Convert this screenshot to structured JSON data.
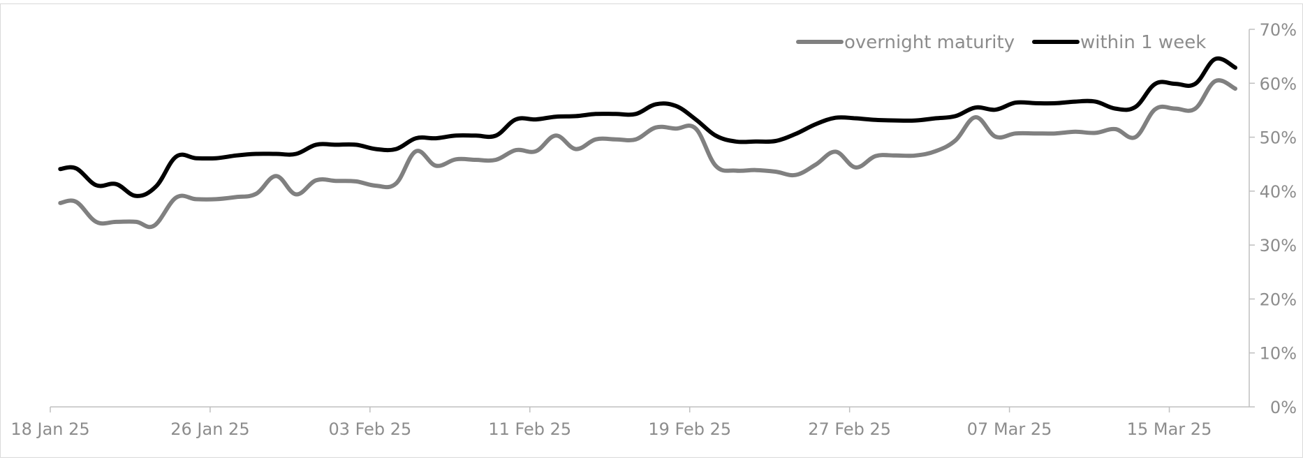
{
  "chart_data": {
    "type": "line",
    "xlabel": "",
    "ylabel": "",
    "grid": false,
    "legend_position": "top-right",
    "y_axis_position": "right",
    "ylim": [
      0,
      70
    ],
    "y_ticks": [
      0,
      10,
      20,
      30,
      40,
      50,
      60,
      70
    ],
    "y_tick_labels": [
      "0%",
      "10%",
      "20%",
      "30%",
      "40%",
      "50%",
      "60%",
      "70%"
    ],
    "x_tick_labels": [
      "18 Jan 25",
      "26 Jan 25",
      "03 Feb 25",
      "11 Feb 25",
      "19 Feb 25",
      "27 Feb 25",
      "07 Mar 25",
      "15 Mar 25"
    ],
    "x_tick_positions": [
      0,
      8,
      16,
      24,
      32,
      40,
      48,
      56
    ],
    "xlim": [
      0,
      60
    ],
    "series": [
      {
        "name": "overnight maturity",
        "color": "#808080",
        "points": [
          [
            0.5,
            37.8
          ],
          [
            1.3,
            38.0
          ],
          [
            2.3,
            34.3
          ],
          [
            3.3,
            34.3
          ],
          [
            4.3,
            34.3
          ],
          [
            5.2,
            33.6
          ],
          [
            6.3,
            38.8
          ],
          [
            7.3,
            38.5
          ],
          [
            8.3,
            38.5
          ],
          [
            9.3,
            38.9
          ],
          [
            10.3,
            39.5
          ],
          [
            11.3,
            42.8
          ],
          [
            12.3,
            39.4
          ],
          [
            13.3,
            42.0
          ],
          [
            14.3,
            41.9
          ],
          [
            15.3,
            41.8
          ],
          [
            16.3,
            41.0
          ],
          [
            17.3,
            41.4
          ],
          [
            18.3,
            47.4
          ],
          [
            19.3,
            44.7
          ],
          [
            20.3,
            45.9
          ],
          [
            21.3,
            45.8
          ],
          [
            22.3,
            45.8
          ],
          [
            23.3,
            47.6
          ],
          [
            24.3,
            47.4
          ],
          [
            25.3,
            50.3
          ],
          [
            26.3,
            47.8
          ],
          [
            27.3,
            49.6
          ],
          [
            28.3,
            49.6
          ],
          [
            29.3,
            49.6
          ],
          [
            30.3,
            51.8
          ],
          [
            31.3,
            51.6
          ],
          [
            32.3,
            51.6
          ],
          [
            33.3,
            44.7
          ],
          [
            34.3,
            43.8
          ],
          [
            35.3,
            43.9
          ],
          [
            36.3,
            43.6
          ],
          [
            37.3,
            43.0
          ],
          [
            38.3,
            44.9
          ],
          [
            39.3,
            47.3
          ],
          [
            40.3,
            44.4
          ],
          [
            41.3,
            46.5
          ],
          [
            42.3,
            46.6
          ],
          [
            43.3,
            46.6
          ],
          [
            44.3,
            47.4
          ],
          [
            45.3,
            49.4
          ],
          [
            46.3,
            53.7
          ],
          [
            47.3,
            50.1
          ],
          [
            48.3,
            50.7
          ],
          [
            49.3,
            50.7
          ],
          [
            50.3,
            50.7
          ],
          [
            51.3,
            51.0
          ],
          [
            52.3,
            50.8
          ],
          [
            53.3,
            51.5
          ],
          [
            54.3,
            50.0
          ],
          [
            55.3,
            55.2
          ],
          [
            56.3,
            55.3
          ],
          [
            57.3,
            55.3
          ],
          [
            58.3,
            60.4
          ],
          [
            59.3,
            59.0
          ]
        ]
      },
      {
        "name": "within 1 week",
        "color": "#000000",
        "points": [
          [
            0.5,
            44.1
          ],
          [
            1.3,
            44.2
          ],
          [
            2.3,
            41.1
          ],
          [
            3.3,
            41.3
          ],
          [
            4.3,
            39.1
          ],
          [
            5.3,
            40.9
          ],
          [
            6.3,
            46.4
          ],
          [
            7.3,
            46.1
          ],
          [
            8.3,
            46.1
          ],
          [
            9.3,
            46.6
          ],
          [
            10.3,
            46.9
          ],
          [
            11.3,
            46.9
          ],
          [
            12.3,
            46.9
          ],
          [
            13.3,
            48.6
          ],
          [
            14.3,
            48.6
          ],
          [
            15.3,
            48.6
          ],
          [
            16.3,
            47.8
          ],
          [
            17.3,
            47.8
          ],
          [
            18.3,
            49.8
          ],
          [
            19.3,
            49.8
          ],
          [
            20.3,
            50.3
          ],
          [
            21.3,
            50.3
          ],
          [
            22.3,
            50.3
          ],
          [
            23.3,
            53.3
          ],
          [
            24.3,
            53.3
          ],
          [
            25.3,
            53.8
          ],
          [
            26.3,
            53.9
          ],
          [
            27.3,
            54.3
          ],
          [
            28.3,
            54.3
          ],
          [
            29.3,
            54.3
          ],
          [
            30.3,
            56.1
          ],
          [
            31.3,
            55.8
          ],
          [
            32.3,
            53.3
          ],
          [
            33.3,
            50.3
          ],
          [
            34.3,
            49.2
          ],
          [
            35.3,
            49.2
          ],
          [
            36.3,
            49.3
          ],
          [
            37.3,
            50.6
          ],
          [
            38.3,
            52.4
          ],
          [
            39.3,
            53.6
          ],
          [
            40.3,
            53.5
          ],
          [
            41.3,
            53.2
          ],
          [
            42.3,
            53.1
          ],
          [
            43.3,
            53.1
          ],
          [
            44.3,
            53.5
          ],
          [
            45.3,
            53.9
          ],
          [
            46.3,
            55.5
          ],
          [
            47.3,
            55.1
          ],
          [
            48.3,
            56.4
          ],
          [
            49.3,
            56.3
          ],
          [
            50.3,
            56.3
          ],
          [
            51.3,
            56.6
          ],
          [
            52.3,
            56.6
          ],
          [
            53.3,
            55.3
          ],
          [
            54.3,
            55.6
          ],
          [
            55.3,
            59.9
          ],
          [
            56.3,
            59.9
          ],
          [
            57.3,
            59.9
          ],
          [
            58.3,
            64.5
          ],
          [
            59.3,
            62.9
          ]
        ]
      }
    ]
  }
}
